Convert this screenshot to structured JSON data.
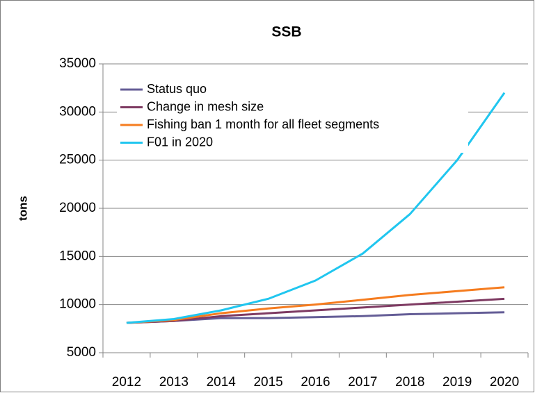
{
  "chart_data": {
    "type": "line",
    "title": "SSB",
    "y_label": "tons",
    "categories": [
      "2012",
      "2013",
      "2014",
      "2015",
      "2016",
      "2017",
      "2018",
      "2019",
      "2020"
    ],
    "series": [
      {
        "name": "Status quo",
        "color": "#645d96",
        "values": [
          8100,
          8300,
          8600,
          8600,
          8700,
          8800,
          9000,
          9100,
          9200
        ]
      },
      {
        "name": "Change in mesh size",
        "color": "#7e3a62",
        "values": [
          8100,
          8300,
          8800,
          9100,
          9400,
          9700,
          10000,
          10300,
          10600
        ]
      },
      {
        "name": "Fishing ban 1 month for all fleet segments",
        "color": "#f57c1f",
        "values": [
          8100,
          8400,
          9100,
          9600,
          10000,
          10500,
          11000,
          11400,
          11800
        ]
      },
      {
        "name": "F01 in 2020",
        "color": "#20c6ef",
        "values": [
          8100,
          8500,
          9400,
          10600,
          12500,
          15300,
          19400,
          25000,
          32000
        ]
      }
    ],
    "ylim": [
      5000,
      35000
    ],
    "yticks": [
      5000,
      10000,
      15000,
      20000,
      25000,
      30000,
      35000
    ],
    "grid": true,
    "legend": "top-left"
  }
}
